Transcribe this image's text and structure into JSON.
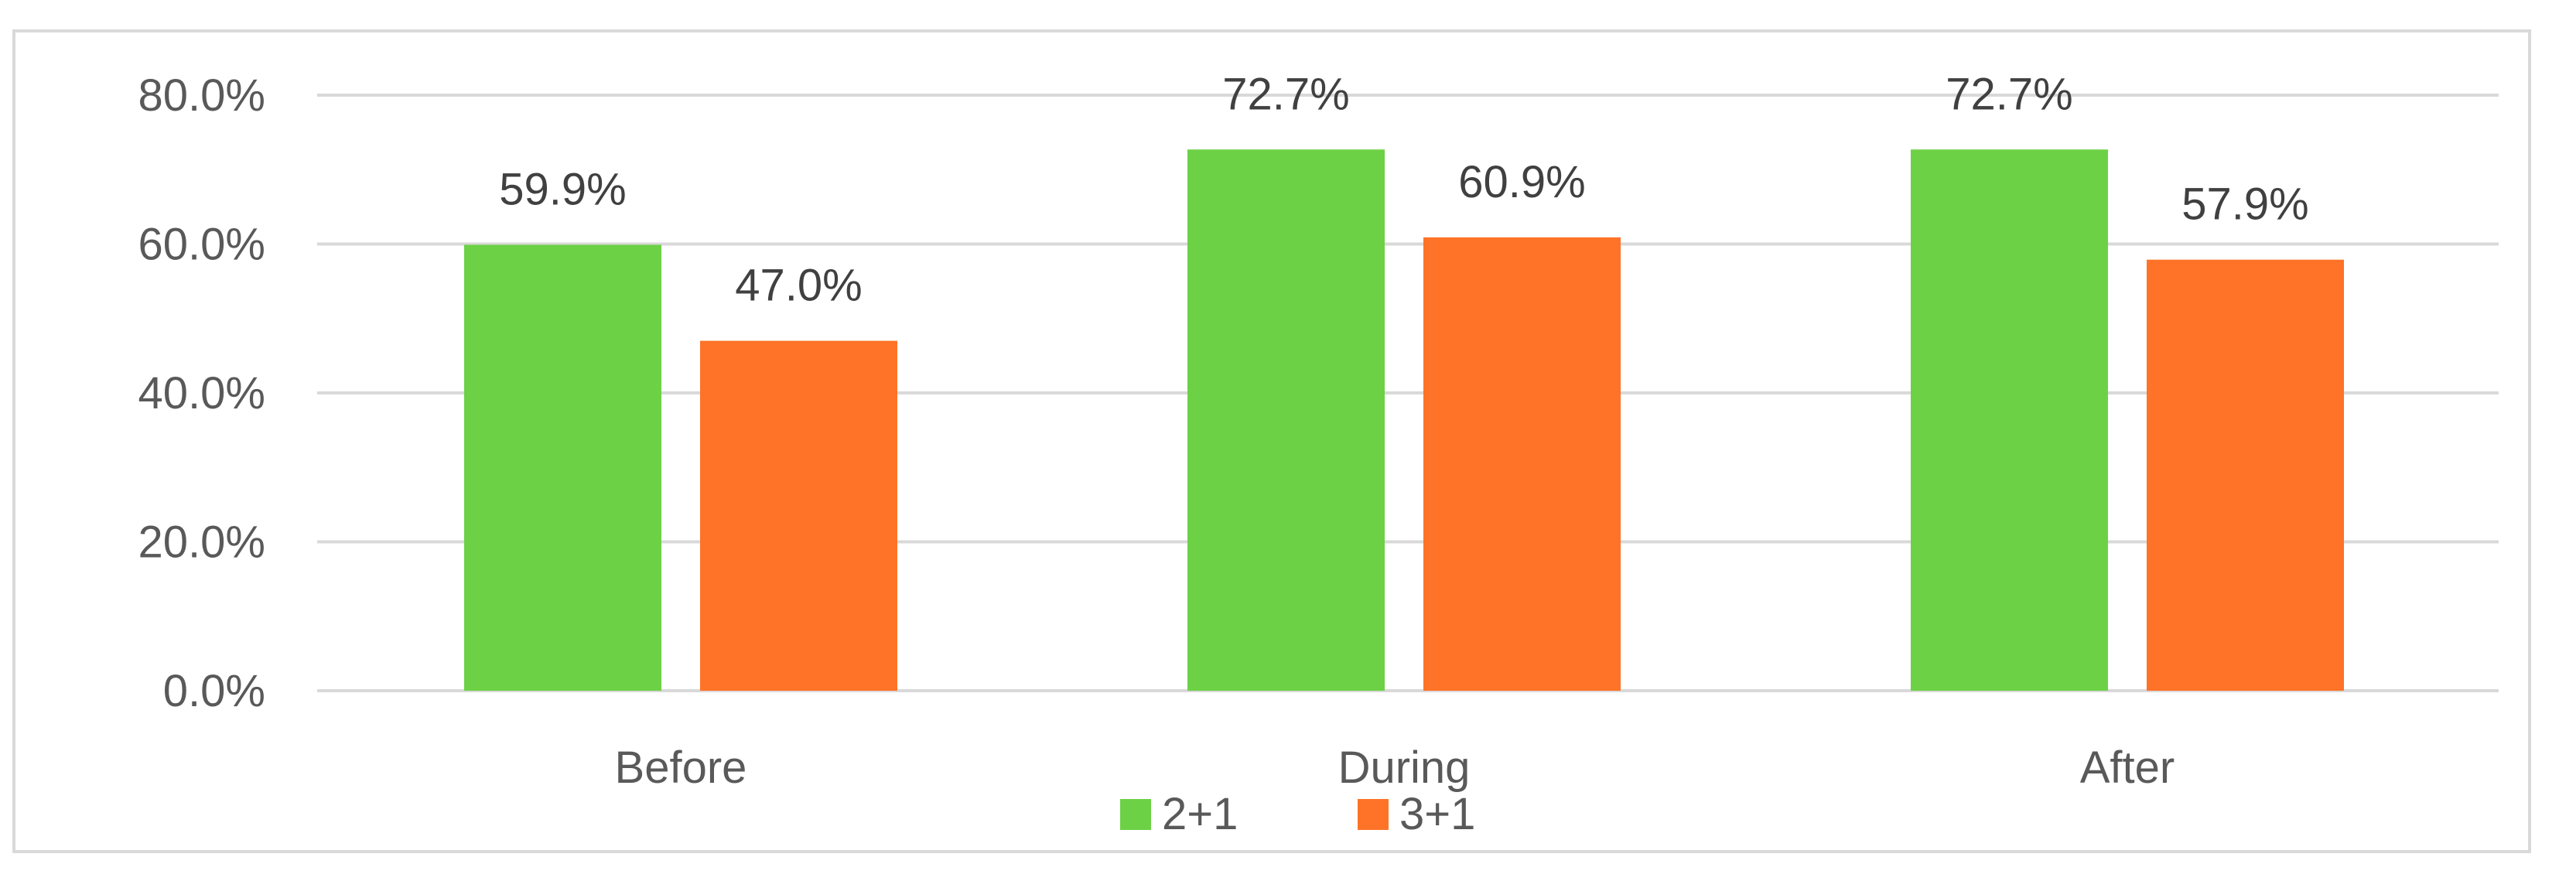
{
  "chart_data": {
    "type": "bar",
    "categories": [
      "Before",
      "During",
      "After"
    ],
    "series": [
      {
        "name": "2+1",
        "color": "#6dd145",
        "values": [
          59.9,
          72.7,
          72.7
        ],
        "labels": [
          "59.9%",
          "72.7%",
          "72.7%"
        ]
      },
      {
        "name": "3+1",
        "color": "#fe7327",
        "values": [
          47.0,
          60.9,
          57.9
        ],
        "labels": [
          "47.0%",
          "60.9%",
          "57.9%"
        ]
      }
    ],
    "ylim": [
      0,
      80
    ],
    "yticks": [
      "0.0%",
      "20.0%",
      "40.0%",
      "60.0%",
      "80.0%"
    ],
    "ytick_values": [
      0,
      20,
      40,
      60,
      80
    ],
    "title": "",
    "xlabel": "",
    "ylabel": "",
    "grid": true,
    "grid_color": "#d9d9d9",
    "legend": "bottom-center"
  }
}
